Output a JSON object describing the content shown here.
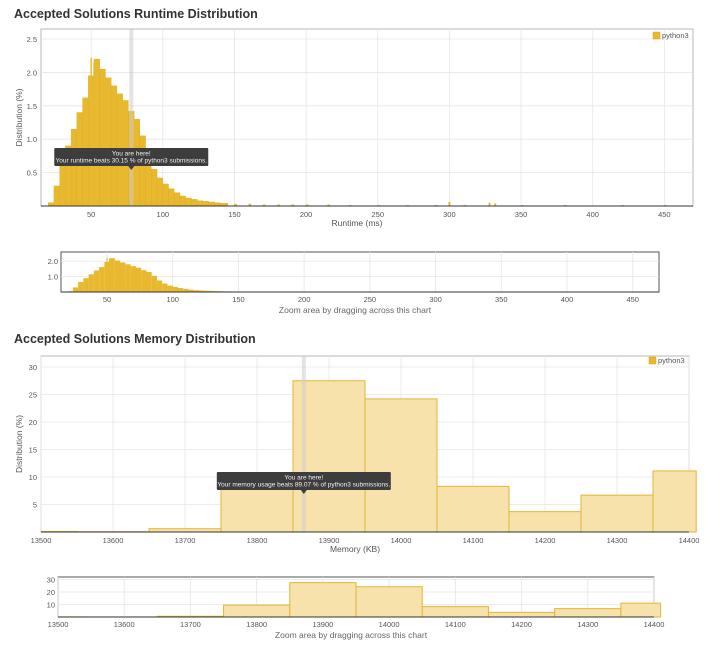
{
  "runtime_title": "Accepted Solutions Runtime Distribution",
  "memory_title": "Accepted Solutions Memory Distribution",
  "zoom_note": "Zoom area by dragging across this chart",
  "colors": {
    "bar": "#e8b92e",
    "bar_stroke": "#d9a61c",
    "mem_fill": "#f7e2ab",
    "mem_stroke": "#e6b530",
    "grid": "#e6e6e6",
    "axis": "#333333",
    "tooltip_bg": "#3d3d3d",
    "marker": "#cccccc"
  },
  "chart_data": [
    {
      "id": "runtime",
      "type": "bar",
      "title": "Accepted Solutions Runtime Distribution",
      "xlabel": "Runtime (ms)",
      "ylabel": "Distribution (%)",
      "xlim": [
        15,
        470
      ],
      "ylim": [
        0,
        2.65
      ],
      "xticks": [
        50,
        100,
        150,
        200,
        250,
        300,
        350,
        400,
        450
      ],
      "yticks": [
        0.5,
        1.0,
        1.5,
        2.0,
        2.5
      ],
      "ytick_labels": [
        "0.5",
        "1.0",
        "1.5",
        "2.0",
        "2.5"
      ],
      "legend": "python3",
      "legend_position": "top-right",
      "marker_x": 78,
      "tooltip": {
        "line1": "You are here!",
        "line2": "Your runtime beats 30.15 % of python3 submissions."
      },
      "peaks": [
        {
          "x": 50,
          "value": 2.22
        },
        {
          "x": 52,
          "value": 2.15
        },
        {
          "x": 55,
          "value": 2.05
        },
        {
          "x": 60,
          "value": 1.9
        },
        {
          "x": 65,
          "value": 1.75
        },
        {
          "x": 72,
          "value": 1.55
        },
        {
          "x": 80,
          "value": 1.3
        }
      ],
      "outliers": [
        {
          "x": 300,
          "value": 0.06
        },
        {
          "x": 328,
          "value": 0.05
        },
        {
          "x": 332,
          "value": 0.04
        }
      ],
      "bins": [
        {
          "x": 20,
          "value": 0.05
        },
        {
          "x": 24,
          "value": 0.3
        },
        {
          "x": 28,
          "value": 0.65
        },
        {
          "x": 32,
          "value": 0.9
        },
        {
          "x": 36,
          "value": 1.15
        },
        {
          "x": 40,
          "value": 1.4
        },
        {
          "x": 44,
          "value": 1.62
        },
        {
          "x": 48,
          "value": 1.95
        },
        {
          "x": 52,
          "value": 2.2
        },
        {
          "x": 56,
          "value": 2.05
        },
        {
          "x": 60,
          "value": 1.92
        },
        {
          "x": 64,
          "value": 1.8
        },
        {
          "x": 68,
          "value": 1.68
        },
        {
          "x": 72,
          "value": 1.58
        },
        {
          "x": 76,
          "value": 1.42
        },
        {
          "x": 80,
          "value": 1.3
        },
        {
          "x": 84,
          "value": 1.05
        },
        {
          "x": 88,
          "value": 0.75
        },
        {
          "x": 92,
          "value": 0.55
        },
        {
          "x": 96,
          "value": 0.42
        },
        {
          "x": 100,
          "value": 0.33
        },
        {
          "x": 104,
          "value": 0.26
        },
        {
          "x": 108,
          "value": 0.2
        },
        {
          "x": 112,
          "value": 0.15
        },
        {
          "x": 116,
          "value": 0.12
        },
        {
          "x": 120,
          "value": 0.1
        },
        {
          "x": 124,
          "value": 0.08
        },
        {
          "x": 128,
          "value": 0.07
        },
        {
          "x": 132,
          "value": 0.06
        },
        {
          "x": 136,
          "value": 0.05
        },
        {
          "x": 140,
          "value": 0.04
        },
        {
          "x": 144,
          "value": 0.04
        },
        {
          "x": 150,
          "value": 0.03
        },
        {
          "x": 160,
          "value": 0.03
        },
        {
          "x": 170,
          "value": 0.02
        },
        {
          "x": 180,
          "value": 0.02
        },
        {
          "x": 190,
          "value": 0.02
        },
        {
          "x": 200,
          "value": 0.02
        },
        {
          "x": 215,
          "value": 0.02
        },
        {
          "x": 230,
          "value": 0.01
        },
        {
          "x": 250,
          "value": 0.01
        },
        {
          "x": 270,
          "value": 0.01
        },
        {
          "x": 290,
          "value": 0.01
        },
        {
          "x": 310,
          "value": 0.01
        },
        {
          "x": 350,
          "value": 0.01
        },
        {
          "x": 380,
          "value": 0.01
        },
        {
          "x": 420,
          "value": 0.01
        },
        {
          "x": 450,
          "value": 0.01
        }
      ],
      "nav_yticks": [
        1.0,
        2.0
      ],
      "nav_ytick_labels": [
        "1.0",
        "2.0"
      ],
      "nav_ylim": [
        0,
        2.6
      ]
    },
    {
      "id": "memory",
      "type": "bar",
      "title": "Accepted Solutions Memory Distribution",
      "xlabel": "Memory (KB)",
      "ylabel": "Distribution (%)",
      "xlim": [
        13500,
        14400
      ],
      "ylim": [
        0,
        32
      ],
      "xticks": [
        13500,
        13600,
        13700,
        13800,
        13900,
        14000,
        14100,
        14200,
        14300,
        14400
      ],
      "yticks": [
        5,
        10,
        15,
        20,
        25,
        30
      ],
      "ytick_labels": [
        "5",
        "10",
        "15",
        "20",
        "25",
        "30"
      ],
      "legend": "python3",
      "legend_position": "top-right",
      "marker_x": 13865,
      "tooltip": {
        "line1": "You are here!",
        "line2": "Your memory usage beats 89.07 % of python3 submissions."
      },
      "bins": [
        {
          "x0": 13500,
          "x1": 13550,
          "value": 0.1
        },
        {
          "x0": 13550,
          "x1": 13650,
          "value": 0.05
        },
        {
          "x0": 13650,
          "x1": 13750,
          "value": 0.6
        },
        {
          "x0": 13750,
          "x1": 13850,
          "value": 9.5
        },
        {
          "x0": 13850,
          "x1": 13950,
          "value": 27.5
        },
        {
          "x0": 13950,
          "x1": 14050,
          "value": 24.2
        },
        {
          "x0": 14050,
          "x1": 14150,
          "value": 8.3
        },
        {
          "x0": 14150,
          "x1": 14250,
          "value": 3.7
        },
        {
          "x0": 14250,
          "x1": 14350,
          "value": 6.7
        },
        {
          "x0": 14350,
          "x1": 14410,
          "value": 11.1
        }
      ],
      "nav_yticks": [
        10,
        20,
        30
      ],
      "nav_ytick_labels": [
        "10",
        "20",
        "30"
      ],
      "nav_ylim": [
        0,
        32
      ]
    }
  ]
}
